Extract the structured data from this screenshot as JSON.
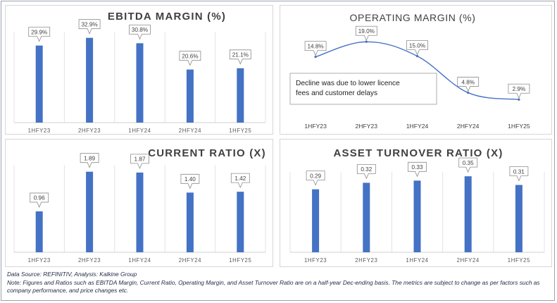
{
  "accent_color": "#4472C4",
  "chart_data": [
    {
      "id": "ebitda",
      "type": "bar",
      "title": "EBITDA MARGIN (%)",
      "categories": [
        "1HFY23",
        "2HFY23",
        "1HFY24",
        "2HFY24",
        "1HFY25"
      ],
      "values": [
        29.9,
        32.9,
        30.8,
        20.6,
        21.1
      ],
      "value_labels": [
        "29.9%",
        "32.9%",
        "30.8%",
        "20.6%",
        "21.1%"
      ],
      "ylim": [
        0,
        35
      ],
      "grid": "vertical",
      "legend": "none"
    },
    {
      "id": "operating",
      "type": "line",
      "title": "OPERATING MARGIN (%)",
      "categories": [
        "1HFY23",
        "2HFY23",
        "1HFY24",
        "2HFY24",
        "1HFY25"
      ],
      "values": [
        14.8,
        19.0,
        15.0,
        4.8,
        2.9
      ],
      "value_labels": [
        "14.8%",
        "19.0%",
        "15.0%",
        "4.8%",
        "2.9%"
      ],
      "ylim": [
        0,
        22
      ],
      "smooth": true,
      "grid": "none",
      "legend": "none",
      "annotation": "Decline was due to lower licence fees and customer delays"
    },
    {
      "id": "current",
      "type": "bar",
      "title": "CURRENT RATIO (X)",
      "categories": [
        "1HFY23",
        "2HFY23",
        "1HFY24",
        "2HFY24",
        "1HFY25"
      ],
      "values": [
        0.96,
        1.89,
        1.87,
        1.4,
        1.42
      ],
      "value_labels": [
        "0.96",
        "1.89",
        "1.87",
        "1.40",
        "1.42"
      ],
      "ylim": [
        0,
        2.05
      ],
      "grid": "vertical",
      "legend": "none"
    },
    {
      "id": "asset",
      "type": "bar",
      "title": "ASSET TURNOVER RATIO (X)",
      "categories": [
        "1HFY23",
        "2HFY23",
        "1HFY24",
        "2HFY24",
        "1HFY25"
      ],
      "values": [
        0.29,
        0.32,
        0.33,
        0.35,
        0.31
      ],
      "value_labels": [
        "0.29",
        "0.32",
        "0.33",
        "0.35",
        "0.31"
      ],
      "ylim": [
        0,
        0.37
      ],
      "grid": "vertical",
      "legend": "none"
    }
  ],
  "footer": {
    "source": "Data Source: REFINITIV, Analysis: Kalkine Group",
    "note": "Note: Figures and Ratios such as EBITDA Margin, Current Ratio, Operating Margin, and Asset Turnover Ratio are on a half-year Dec-ending basis. The metrics are subject to change as per factors such as company performance, and price changes etc."
  }
}
